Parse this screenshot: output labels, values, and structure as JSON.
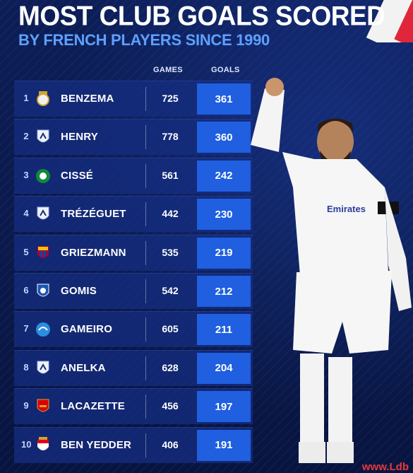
{
  "title": "MOST CLUB GOALS SCORED",
  "subtitle": "BY FRENCH PLAYERS SINCE 1990",
  "columns": {
    "games": "GAMES",
    "goals": "GOALS"
  },
  "watermark": "www.Ldb",
  "chart_data": {
    "type": "table",
    "title": "MOST CLUB GOALS SCORED",
    "subtitle": "BY FRENCH PLAYERS SINCE 1990",
    "columns": [
      "GAMES",
      "GOALS"
    ],
    "rows": [
      {
        "rank": "1",
        "player": "BENZEMA",
        "games": "725",
        "goals": "361",
        "crest": "real-madrid-crest"
      },
      {
        "rank": "2",
        "player": "HENRY",
        "games": "778",
        "goals": "360",
        "crest": "club-crest"
      },
      {
        "rank": "3",
        "player": "CISSÉ",
        "games": "561",
        "goals": "242",
        "crest": "panathinaikos-crest"
      },
      {
        "rank": "4",
        "player": "TRÉZÉGUET",
        "games": "442",
        "goals": "230",
        "crest": "club-crest"
      },
      {
        "rank": "5",
        "player": "GRIEZMANN",
        "games": "535",
        "goals": "219",
        "crest": "barcelona-crest"
      },
      {
        "rank": "6",
        "player": "GOMIS",
        "games": "542",
        "goals": "212",
        "crest": "al-hilal-crest"
      },
      {
        "rank": "7",
        "player": "GAMEIRO",
        "games": "605",
        "goals": "211",
        "crest": "strasbourg-crest"
      },
      {
        "rank": "8",
        "player": "ANELKA",
        "games": "628",
        "goals": "204",
        "crest": "club-crest"
      },
      {
        "rank": "9",
        "player": "LACAZETTE",
        "games": "456",
        "goals": "197",
        "crest": "arsenal-crest"
      },
      {
        "rank": "10",
        "player": "BEN YEDDER",
        "games": "406",
        "goals": "191",
        "crest": "monaco-crest"
      }
    ]
  },
  "colors": {
    "background": "#0b1a4a",
    "row": "#162e82",
    "goals_box": "#1f5fe0",
    "subtitle": "#5ea0ff"
  }
}
